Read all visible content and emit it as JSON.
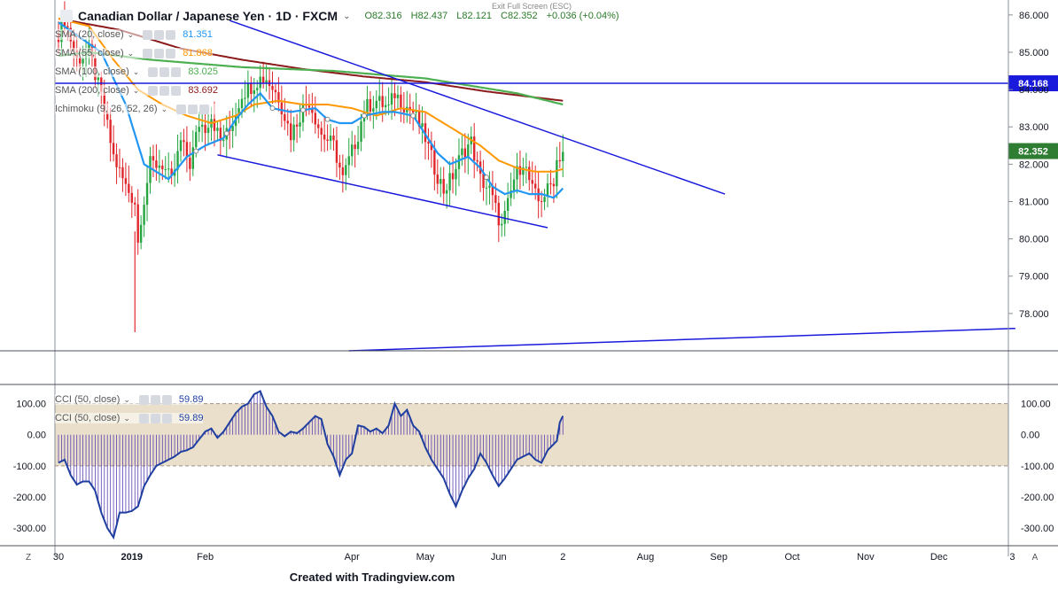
{
  "header": {
    "title": "Canadian Dollar / Japanese Yen · 1D · FXCM",
    "ohlc": [
      "O82.316",
      "H82.437",
      "L82.121",
      "C82.352",
      "+0.036 (+0.04%)"
    ],
    "exit_fullscreen": "Exit Full Screen (ESC)"
  },
  "indicators": [
    {
      "label": "SMA (20, close)",
      "value": "81.351",
      "color": "#2196f3"
    },
    {
      "label": "SMA (55, close)",
      "value": "81.868",
      "color": "#ff9800"
    },
    {
      "label": "SMA (100, close)",
      "value": "83.025",
      "color": "#4caf50"
    },
    {
      "label": "SMA (200, close)",
      "value": "83.692",
      "color": "#8b1a1a"
    },
    {
      "label": "Ichimoku (9, 26, 52, 26)",
      "value": "",
      "color": "#555555"
    }
  ],
  "cci_indicators": [
    {
      "label": "CCI (50, close)",
      "value": "59.89",
      "color": "#1f3fa0"
    },
    {
      "label": "CCI (50, close)",
      "value": "59.89",
      "color": "#1f3fa0"
    }
  ],
  "chart_data": {
    "type": "candlestick",
    "symbol": "CADJPY",
    "timeframe": "1D",
    "price_axis": {
      "ylim": [
        77.0,
        86.4
      ],
      "ticks": [
        "86.000",
        "85.000",
        "84.000",
        "83.000",
        "82.000",
        "81.000",
        "80.000",
        "79.000",
        "78.000"
      ]
    },
    "current_price": {
      "value": 82.352,
      "label": "82.352",
      "color": "#2e7d32"
    },
    "horizontal_level": {
      "value": 84.168,
      "label": "84.168",
      "color": "#1a1adc"
    },
    "x_axis": {
      "labels": [
        "30",
        "2019",
        "Feb",
        "Apr",
        "May",
        "Jun",
        "2",
        "Aug",
        "Sep",
        "Oct",
        "Nov",
        "Dec",
        "3"
      ],
      "label_index": [
        0,
        24,
        48,
        96,
        120,
        144,
        165,
        192,
        216,
        240,
        264,
        288,
        312
      ]
    },
    "ohlc_waypoints": [
      [
        0,
        85.5
      ],
      [
        2,
        85.9
      ],
      [
        6,
        84.8
      ],
      [
        10,
        85.0
      ],
      [
        14,
        83.8
      ],
      [
        18,
        82.2
      ],
      [
        22,
        81.4
      ],
      [
        25,
        81.0
      ],
      [
        26,
        79.9
      ],
      [
        27,
        80.6
      ],
      [
        30,
        82.0
      ],
      [
        34,
        82.0
      ],
      [
        37,
        81.5
      ],
      [
        40,
        82.6
      ],
      [
        43,
        82.0
      ],
      [
        46,
        83.1
      ],
      [
        48,
        83.0
      ],
      [
        50,
        83.3
      ],
      [
        53,
        82.6
      ],
      [
        56,
        82.9
      ],
      [
        60,
        83.9
      ],
      [
        63,
        84.1
      ],
      [
        66,
        84.3
      ],
      [
        68,
        84.3
      ],
      [
        72,
        83.8
      ],
      [
        76,
        82.8
      ],
      [
        80,
        83.5
      ],
      [
        82,
        83.7
      ],
      [
        86,
        82.8
      ],
      [
        90,
        82.5
      ],
      [
        93,
        81.6
      ],
      [
        95,
        82.1
      ],
      [
        98,
        82.8
      ],
      [
        100,
        83.5
      ],
      [
        104,
        83.7
      ],
      [
        108,
        83.5
      ],
      [
        110,
        83.9
      ],
      [
        113,
        83.6
      ],
      [
        116,
        83.4
      ],
      [
        120,
        82.7
      ],
      [
        123,
        81.9
      ],
      [
        126,
        81.3
      ],
      [
        129,
        81.7
      ],
      [
        132,
        82.3
      ],
      [
        135,
        82.6
      ],
      [
        138,
        81.6
      ],
      [
        141,
        81.3
      ],
      [
        143,
        80.8
      ],
      [
        145,
        80.3
      ],
      [
        147,
        80.9
      ],
      [
        149,
        81.6
      ],
      [
        152,
        82.1
      ],
      [
        155,
        81.3
      ],
      [
        157,
        81.0
      ],
      [
        160,
        81.3
      ],
      [
        162,
        81.6
      ],
      [
        163,
        82.1
      ],
      [
        165,
        82.35
      ]
    ],
    "sma20_waypoints": [
      [
        0,
        85.8
      ],
      [
        14,
        85.0
      ],
      [
        22,
        83.6
      ],
      [
        28,
        82.0
      ],
      [
        36,
        81.6
      ],
      [
        42,
        82.2
      ],
      [
        48,
        82.5
      ],
      [
        54,
        82.7
      ],
      [
        58,
        83.2
      ],
      [
        62,
        83.6
      ],
      [
        66,
        83.9
      ],
      [
        70,
        83.5
      ],
      [
        76,
        83.4
      ],
      [
        84,
        83.5
      ],
      [
        88,
        83.2
      ],
      [
        92,
        83.1
      ],
      [
        96,
        83.1
      ],
      [
        100,
        83.3
      ],
      [
        106,
        83.4
      ],
      [
        110,
        83.4
      ],
      [
        116,
        83.3
      ],
      [
        120,
        82.8
      ],
      [
        124,
        82.3
      ],
      [
        128,
        82.0
      ],
      [
        134,
        82.2
      ],
      [
        138,
        81.9
      ],
      [
        142,
        81.4
      ],
      [
        146,
        81.2
      ],
      [
        150,
        81.3
      ],
      [
        154,
        81.2
      ],
      [
        158,
        81.2
      ],
      [
        162,
        81.1
      ],
      [
        165,
        81.35
      ]
    ],
    "sma55_waypoints": [
      [
        0,
        85.9
      ],
      [
        10,
        85.7
      ],
      [
        18,
        84.8
      ],
      [
        26,
        84.0
      ],
      [
        34,
        83.6
      ],
      [
        42,
        83.3
      ],
      [
        50,
        83.1
      ],
      [
        58,
        83.3
      ],
      [
        64,
        83.6
      ],
      [
        72,
        83.7
      ],
      [
        80,
        83.6
      ],
      [
        88,
        83.6
      ],
      [
        96,
        83.5
      ],
      [
        104,
        83.3
      ],
      [
        112,
        83.5
      ],
      [
        120,
        83.4
      ],
      [
        126,
        83.1
      ],
      [
        132,
        82.8
      ],
      [
        138,
        82.5
      ],
      [
        144,
        82.1
      ],
      [
        150,
        81.9
      ],
      [
        156,
        81.8
      ],
      [
        162,
        81.8
      ],
      [
        165,
        81.87
      ]
    ],
    "sma100_waypoints": [
      [
        0,
        84.9
      ],
      [
        10,
        85.0
      ],
      [
        30,
        84.8
      ],
      [
        60,
        84.6
      ],
      [
        90,
        84.5
      ],
      [
        120,
        84.3
      ],
      [
        150,
        83.9
      ],
      [
        165,
        83.6
      ]
    ],
    "sma200_waypoints": [
      [
        0,
        85.9
      ],
      [
        20,
        85.6
      ],
      [
        40,
        85.1
      ],
      [
        60,
        84.8
      ],
      [
        80,
        84.55
      ],
      [
        100,
        84.35
      ],
      [
        120,
        84.2
      ],
      [
        140,
        83.95
      ],
      [
        165,
        83.7
      ]
    ],
    "trendlines": [
      {
        "from": [
          56,
          85.85
        ],
        "to": [
          218,
          81.2
        ]
      },
      {
        "from": [
          52,
          82.25
        ],
        "to": [
          160,
          80.3
        ]
      },
      {
        "from": [
          95,
          77.0
        ],
        "to": [
          313,
          77.6
        ]
      }
    ],
    "cci_axis": {
      "ylim": [
        -345,
        150
      ],
      "ticks": [
        "100.00",
        "0.00",
        "-100.00",
        "-200.00",
        "-300.00"
      ]
    },
    "cci_waypoints": [
      [
        0,
        -90
      ],
      [
        2,
        -80
      ],
      [
        4,
        -130
      ],
      [
        6,
        -160
      ],
      [
        8,
        -150
      ],
      [
        10,
        -150
      ],
      [
        12,
        -180
      ],
      [
        14,
        -250
      ],
      [
        16,
        -300
      ],
      [
        18,
        -330
      ],
      [
        20,
        -250
      ],
      [
        22,
        -250
      ],
      [
        24,
        -245
      ],
      [
        26,
        -230
      ],
      [
        28,
        -165
      ],
      [
        30,
        -130
      ],
      [
        32,
        -100
      ],
      [
        34,
        -90
      ],
      [
        36,
        -80
      ],
      [
        38,
        -70
      ],
      [
        40,
        -55
      ],
      [
        42,
        -50
      ],
      [
        44,
        -40
      ],
      [
        46,
        -15
      ],
      [
        48,
        10
      ],
      [
        50,
        20
      ],
      [
        52,
        -10
      ],
      [
        54,
        10
      ],
      [
        56,
        40
      ],
      [
        58,
        70
      ],
      [
        60,
        90
      ],
      [
        62,
        100
      ],
      [
        64,
        130
      ],
      [
        66,
        140
      ],
      [
        68,
        90
      ],
      [
        70,
        60
      ],
      [
        72,
        10
      ],
      [
        74,
        -5
      ],
      [
        76,
        10
      ],
      [
        78,
        5
      ],
      [
        80,
        20
      ],
      [
        82,
        40
      ],
      [
        84,
        60
      ],
      [
        86,
        50
      ],
      [
        88,
        -30
      ],
      [
        90,
        -70
      ],
      [
        92,
        -130
      ],
      [
        94,
        -80
      ],
      [
        96,
        -60
      ],
      [
        98,
        30
      ],
      [
        100,
        25
      ],
      [
        102,
        10
      ],
      [
        104,
        20
      ],
      [
        106,
        5
      ],
      [
        108,
        30
      ],
      [
        110,
        100
      ],
      [
        112,
        60
      ],
      [
        114,
        80
      ],
      [
        116,
        30
      ],
      [
        118,
        10
      ],
      [
        120,
        -40
      ],
      [
        122,
        -80
      ],
      [
        124,
        -110
      ],
      [
        126,
        -140
      ],
      [
        128,
        -190
      ],
      [
        130,
        -230
      ],
      [
        132,
        -180
      ],
      [
        134,
        -140
      ],
      [
        136,
        -110
      ],
      [
        138,
        -60
      ],
      [
        140,
        -90
      ],
      [
        142,
        -130
      ],
      [
        144,
        -165
      ],
      [
        146,
        -140
      ],
      [
        148,
        -110
      ],
      [
        150,
        -80
      ],
      [
        152,
        -70
      ],
      [
        154,
        -60
      ],
      [
        156,
        -80
      ],
      [
        158,
        -90
      ],
      [
        160,
        -50
      ],
      [
        162,
        -30
      ],
      [
        163,
        -20
      ],
      [
        164,
        40
      ],
      [
        165,
        60
      ]
    ]
  },
  "watermark": "Created with Tradingview.com",
  "corner_labels": {
    "left": "Z",
    "right": "A"
  }
}
